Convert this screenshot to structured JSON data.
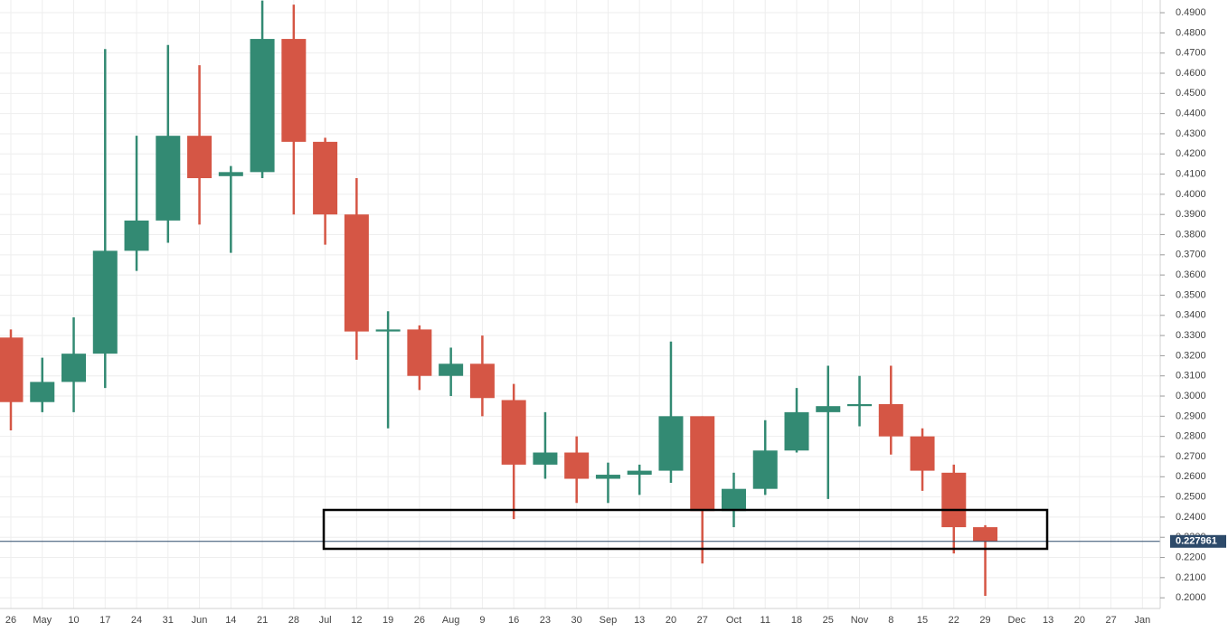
{
  "chart_data": {
    "type": "candlestick",
    "categories": [
      "26",
      "May",
      "10",
      "17",
      "24",
      "31",
      "Jun",
      "14",
      "21",
      "28",
      "Jul",
      "12",
      "19",
      "26",
      "Aug",
      "9",
      "16",
      "23",
      "30",
      "Sep",
      "13",
      "20",
      "27",
      "Oct",
      "11",
      "18",
      "25",
      "Nov",
      "8",
      "15",
      "22",
      "29",
      "Dec",
      "13",
      "20",
      "27",
      "Jan"
    ],
    "open": [
      0.329,
      0.297,
      0.307,
      0.321,
      0.372,
      0.387,
      0.429,
      0.409,
      0.411,
      0.477,
      0.426,
      0.39,
      0.332,
      0.333,
      0.31,
      0.316,
      0.298,
      0.266,
      0.272,
      0.259,
      0.261,
      0.263,
      0.29,
      0.243,
      0.254,
      0.273,
      0.292,
      0.295,
      0.296,
      0.28,
      0.262,
      0.235,
      null,
      null,
      null,
      null,
      null
    ],
    "high": [
      0.333,
      0.319,
      0.339,
      0.472,
      0.429,
      0.474,
      0.464,
      0.414,
      0.496,
      0.494,
      0.428,
      0.408,
      0.342,
      0.335,
      0.324,
      0.33,
      0.306,
      0.292,
      0.28,
      0.267,
      0.266,
      0.327,
      0.29,
      0.262,
      0.288,
      0.304,
      0.315,
      0.31,
      0.315,
      0.284,
      0.266,
      0.236,
      null,
      null,
      null,
      null,
      null
    ],
    "low": [
      0.283,
      0.292,
      0.292,
      0.304,
      0.362,
      0.376,
      0.385,
      0.371,
      0.408,
      0.39,
      0.375,
      0.318,
      0.284,
      0.303,
      0.3,
      0.29,
      0.239,
      0.259,
      0.247,
      0.247,
      0.251,
      0.257,
      0.217,
      0.235,
      0.251,
      0.272,
      0.249,
      0.285,
      0.271,
      0.253,
      0.222,
      0.201,
      null,
      null,
      null,
      null,
      null
    ],
    "close": [
      0.297,
      0.307,
      0.321,
      0.372,
      0.387,
      0.429,
      0.408,
      0.411,
      0.477,
      0.426,
      0.39,
      0.332,
      0.333,
      0.31,
      0.316,
      0.299,
      0.266,
      0.272,
      0.259,
      0.261,
      0.263,
      0.29,
      0.243,
      0.254,
      0.273,
      0.292,
      0.295,
      0.296,
      0.28,
      0.263,
      0.235,
      0.228,
      null,
      null,
      null,
      null,
      null
    ],
    "up_color": "#338a73",
    "down_color": "#d55645",
    "ylim": [
      0.1947,
      0.4963
    ],
    "yticks": [
      {
        "value": 0.2,
        "label": "0.2000"
      },
      {
        "value": 0.21,
        "label": "0.2100"
      },
      {
        "value": 0.22,
        "label": "0.2200"
      },
      {
        "value": 0.23,
        "label": "0.2300"
      },
      {
        "value": 0.24,
        "label": "0.2400"
      },
      {
        "value": 0.25,
        "label": "0.2500"
      },
      {
        "value": 0.26,
        "label": "0.2600"
      },
      {
        "value": 0.27,
        "label": "0.2700"
      },
      {
        "value": 0.28,
        "label": "0.2800"
      },
      {
        "value": 0.29,
        "label": "0.2900"
      },
      {
        "value": 0.3,
        "label": "0.3000"
      },
      {
        "value": 0.31,
        "label": "0.3100"
      },
      {
        "value": 0.32,
        "label": "0.3200"
      },
      {
        "value": 0.33,
        "label": "0.3300"
      },
      {
        "value": 0.34,
        "label": "0.3400"
      },
      {
        "value": 0.35,
        "label": "0.3500"
      },
      {
        "value": 0.36,
        "label": "0.3600"
      },
      {
        "value": 0.37,
        "label": "0.3700"
      },
      {
        "value": 0.38,
        "label": "0.3800"
      },
      {
        "value": 0.39,
        "label": "0.3900"
      },
      {
        "value": 0.4,
        "label": "0.4000"
      },
      {
        "value": 0.41,
        "label": "0.4100"
      },
      {
        "value": 0.42,
        "label": "0.4200"
      },
      {
        "value": 0.43,
        "label": "0.4300"
      },
      {
        "value": 0.44,
        "label": "0.4400"
      },
      {
        "value": 0.45,
        "label": "0.4500"
      },
      {
        "value": 0.46,
        "label": "0.4600"
      },
      {
        "value": 0.47,
        "label": "0.4700"
      },
      {
        "value": 0.48,
        "label": "0.4800"
      },
      {
        "value": 0.49,
        "label": "0.4900"
      }
    ],
    "current_price": 0.227961,
    "grid": true
  }
}
